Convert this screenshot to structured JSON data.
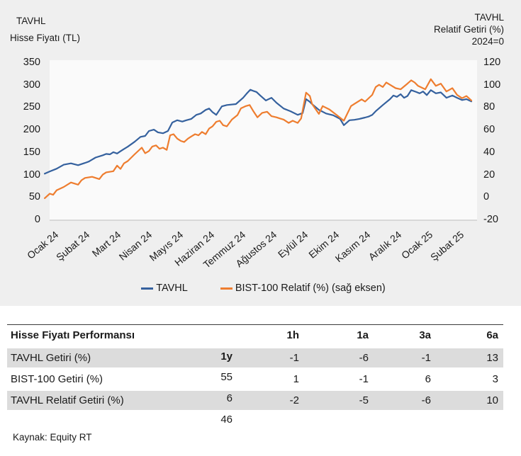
{
  "figure": {
    "left_title_line1": "TAVHL",
    "left_title_line2": "Hisse Fiyatı (TL)",
    "right_title_line1": "TAVHL",
    "right_title_line2": "Relatif Getiri (%)",
    "right_title_line3": "2024=0"
  },
  "chart_data": {
    "type": "line",
    "title": "TAVHL Hisse Fiyatı (TL) ve BIST-100 Relatif Getiri (%), 2024=0",
    "x_tick_labels": [
      "Ocak 24",
      "Şubat 24",
      "Mart 24",
      "Nisan 24",
      "Mayıs 24",
      "Haziran 24",
      "Temmuz 24",
      "Ağustos 24",
      "Eylül 24",
      "Ekim 24",
      "Kasım 24",
      "Aralık 24",
      "Ocak 25",
      "Şubat 25"
    ],
    "left_axis": {
      "label": "Hisse Fiyatı (TL)",
      "range": [
        0,
        350
      ],
      "ticks": [
        0,
        50,
        100,
        150,
        200,
        250,
        300,
        350
      ]
    },
    "right_axis": {
      "label": "Relatif Getiri (%) 2024=0",
      "range": [
        -20,
        120
      ],
      "ticks": [
        -20,
        0,
        20,
        40,
        60,
        80,
        100,
        120
      ]
    },
    "grid": false,
    "legend_position": "bottom-center",
    "legend": [
      "TAVHL",
      "BIST-100 Relatif (%) (sağ eksen)"
    ],
    "series": [
      {
        "name": "TAVHL",
        "axis": "left",
        "color": "#35619e",
        "points": [
          [
            -0.27,
            102
          ],
          [
            -0.11,
            107
          ],
          [
            0.11,
            113
          ],
          [
            0.34,
            122
          ],
          [
            0.57,
            125
          ],
          [
            0.8,
            121
          ],
          [
            1.02,
            126
          ],
          [
            1.14,
            129
          ],
          [
            1.36,
            138
          ],
          [
            1.59,
            143
          ],
          [
            1.7,
            146
          ],
          [
            1.82,
            145
          ],
          [
            1.93,
            150
          ],
          [
            2.05,
            147
          ],
          [
            2.16,
            152
          ],
          [
            2.27,
            157
          ],
          [
            2.39,
            162
          ],
          [
            2.61,
            173
          ],
          [
            2.8,
            184
          ],
          [
            2.95,
            186
          ],
          [
            3.07,
            197
          ],
          [
            3.23,
            200
          ],
          [
            3.36,
            194
          ],
          [
            3.52,
            192
          ],
          [
            3.68,
            197
          ],
          [
            3.82,
            216
          ],
          [
            3.98,
            221
          ],
          [
            4.14,
            218
          ],
          [
            4.27,
            221
          ],
          [
            4.43,
            224
          ],
          [
            4.59,
            233
          ],
          [
            4.73,
            236
          ],
          [
            4.89,
            244
          ],
          [
            5.0,
            247
          ],
          [
            5.11,
            239
          ],
          [
            5.23,
            233
          ],
          [
            5.41,
            252
          ],
          [
            5.57,
            255
          ],
          [
            5.86,
            257
          ],
          [
            6.09,
            271
          ],
          [
            6.2,
            280
          ],
          [
            6.32,
            289
          ],
          [
            6.43,
            286
          ],
          [
            6.52,
            284
          ],
          [
            6.64,
            276
          ],
          [
            6.82,
            265
          ],
          [
            7.0,
            271
          ],
          [
            7.16,
            260
          ],
          [
            7.39,
            247
          ],
          [
            7.61,
            241
          ],
          [
            7.84,
            233
          ],
          [
            8.0,
            237
          ],
          [
            8.11,
            268
          ],
          [
            8.23,
            262
          ],
          [
            8.3,
            257
          ],
          [
            8.52,
            244
          ],
          [
            8.64,
            240
          ],
          [
            8.75,
            236
          ],
          [
            8.98,
            232
          ],
          [
            9.2,
            224
          ],
          [
            9.32,
            210
          ],
          [
            9.5,
            221
          ],
          [
            9.66,
            222
          ],
          [
            9.82,
            224
          ],
          [
            10.0,
            227
          ],
          [
            10.11,
            229
          ],
          [
            10.23,
            233
          ],
          [
            10.34,
            241
          ],
          [
            10.57,
            255
          ],
          [
            10.8,
            268
          ],
          [
            10.91,
            276
          ],
          [
            11.02,
            273
          ],
          [
            11.14,
            279
          ],
          [
            11.25,
            271
          ],
          [
            11.36,
            275
          ],
          [
            11.48,
            288
          ],
          [
            11.64,
            284
          ],
          [
            11.75,
            281
          ],
          [
            11.86,
            285
          ],
          [
            11.98,
            277
          ],
          [
            12.11,
            288
          ],
          [
            12.27,
            281
          ],
          [
            12.43,
            283
          ],
          [
            12.61,
            271
          ],
          [
            12.8,
            276
          ],
          [
            12.95,
            271
          ],
          [
            13.11,
            266
          ],
          [
            13.25,
            268
          ],
          [
            13.41,
            263
          ]
        ]
      },
      {
        "name": "BIST-100 Relatif (%) (sağ eksen)",
        "axis": "right",
        "color": "#ee7d2f",
        "points": [
          [
            -0.27,
            -1
          ],
          [
            -0.11,
            3
          ],
          [
            0.0,
            2
          ],
          [
            0.11,
            6
          ],
          [
            0.34,
            9
          ],
          [
            0.57,
            13
          ],
          [
            0.8,
            11
          ],
          [
            0.91,
            15
          ],
          [
            1.02,
            17
          ],
          [
            1.25,
            18
          ],
          [
            1.48,
            16
          ],
          [
            1.59,
            20
          ],
          [
            1.7,
            22
          ],
          [
            1.93,
            23
          ],
          [
            2.05,
            28
          ],
          [
            2.16,
            25
          ],
          [
            2.27,
            30
          ],
          [
            2.39,
            32
          ],
          [
            2.61,
            38
          ],
          [
            2.84,
            44
          ],
          [
            2.95,
            39
          ],
          [
            3.07,
            41
          ],
          [
            3.18,
            45
          ],
          [
            3.3,
            46
          ],
          [
            3.41,
            43
          ],
          [
            3.52,
            44
          ],
          [
            3.64,
            42
          ],
          [
            3.75,
            55
          ],
          [
            3.86,
            56
          ],
          [
            3.98,
            52
          ],
          [
            4.09,
            50
          ],
          [
            4.2,
            49
          ],
          [
            4.32,
            52
          ],
          [
            4.43,
            54
          ],
          [
            4.55,
            56
          ],
          [
            4.66,
            55
          ],
          [
            4.77,
            58
          ],
          [
            4.89,
            56
          ],
          [
            5.0,
            61
          ],
          [
            5.11,
            63
          ],
          [
            5.23,
            67
          ],
          [
            5.34,
            68
          ],
          [
            5.45,
            64
          ],
          [
            5.57,
            63
          ],
          [
            5.73,
            69
          ],
          [
            5.91,
            73
          ],
          [
            6.02,
            79
          ],
          [
            6.18,
            81
          ],
          [
            6.3,
            82
          ],
          [
            6.43,
            76
          ],
          [
            6.55,
            71
          ],
          [
            6.7,
            75
          ],
          [
            6.86,
            76
          ],
          [
            7.0,
            72
          ],
          [
            7.16,
            71
          ],
          [
            7.27,
            70
          ],
          [
            7.39,
            69
          ],
          [
            7.55,
            66
          ],
          [
            7.68,
            68
          ],
          [
            7.84,
            66
          ],
          [
            7.95,
            70
          ],
          [
            8.11,
            93
          ],
          [
            8.23,
            90
          ],
          [
            8.3,
            83
          ],
          [
            8.52,
            74
          ],
          [
            8.64,
            81
          ],
          [
            8.86,
            78
          ],
          [
            9.09,
            73
          ],
          [
            9.32,
            68
          ],
          [
            9.55,
            81
          ],
          [
            9.66,
            83
          ],
          [
            9.89,
            87
          ],
          [
            10.0,
            85
          ],
          [
            10.23,
            91
          ],
          [
            10.34,
            98
          ],
          [
            10.45,
            100
          ],
          [
            10.57,
            98
          ],
          [
            10.68,
            102
          ],
          [
            10.8,
            100
          ],
          [
            10.98,
            97
          ],
          [
            11.14,
            96
          ],
          [
            11.36,
            101
          ],
          [
            11.48,
            104
          ],
          [
            11.59,
            102
          ],
          [
            11.7,
            99
          ],
          [
            11.93,
            96
          ],
          [
            12.11,
            105
          ],
          [
            12.27,
            99
          ],
          [
            12.43,
            101
          ],
          [
            12.61,
            94
          ],
          [
            12.8,
            97
          ],
          [
            12.95,
            91
          ],
          [
            13.11,
            88
          ],
          [
            13.25,
            90
          ],
          [
            13.41,
            86
          ]
        ]
      }
    ]
  },
  "table": {
    "header": [
      "Hisse Fiyatı Performansı",
      "1h",
      "1a",
      "3a",
      "6a",
      "1y"
    ],
    "rows": [
      {
        "label": "TAVHL Getiri (%)",
        "values": [
          "-1",
          "-6",
          "-1",
          "13",
          "55"
        ],
        "shaded": true
      },
      {
        "label": "BIST-100 Getiri (%)",
        "values": [
          "1",
          "-1",
          "6",
          "3",
          "6"
        ],
        "shaded": false
      },
      {
        "label": "TAVHL Relatif Getiri (%)",
        "values": [
          "-2",
          "-5",
          "-6",
          "10",
          "46"
        ],
        "shaded": true
      }
    ]
  },
  "source": "Kaynak: Equity RT",
  "colors": {
    "figure_background": "#efefef",
    "plot_background": "#fafafa",
    "axis_line": "#cfcfcf",
    "table_shaded_row": "#dcdcdc",
    "text": "#1a1a1a",
    "tavhl_line": "#35619e",
    "bist100_line": "#ee7d2f"
  }
}
